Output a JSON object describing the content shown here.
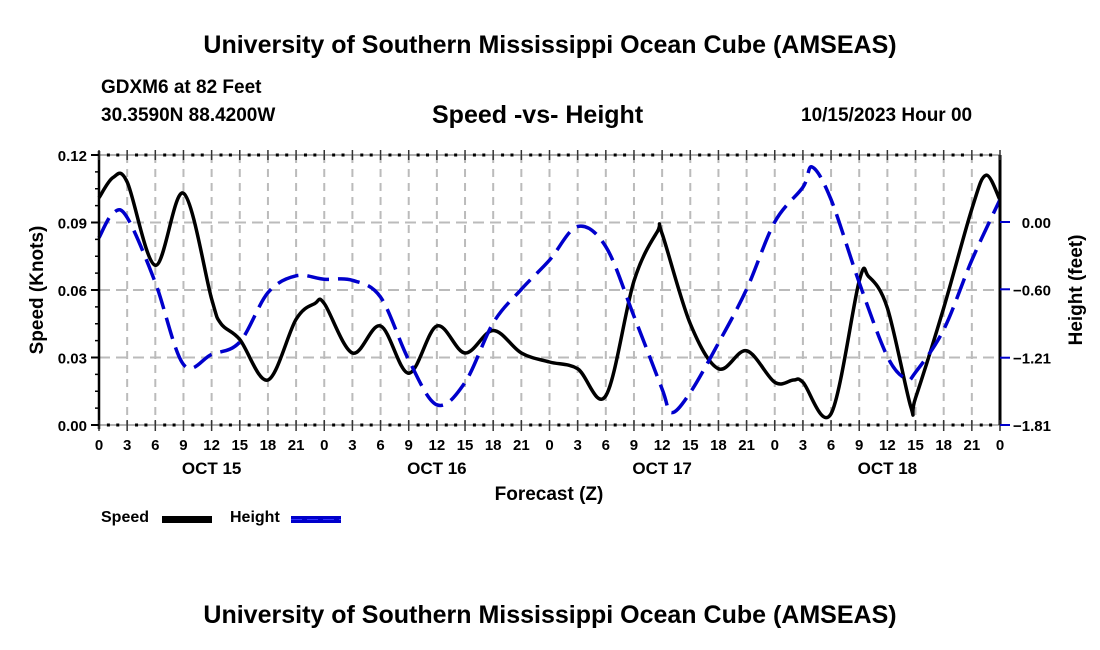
{
  "header": {
    "title": "University of Southern Mississippi Ocean Cube (AMSEAS)",
    "station": "GDXM6 at 82 Feet",
    "coordinates": "30.3590N  88.4200W",
    "subtitle": "Speed -vs- Height",
    "datetime": "10/15/2023 Hour 00"
  },
  "footer": {
    "title": "University of Southern Mississippi Ocean Cube (AMSEAS)"
  },
  "legend": {
    "items": [
      {
        "label": "Speed",
        "color": "#000000",
        "style": "solid"
      },
      {
        "label": "Height",
        "color": "#0000cc",
        "style": "dashed"
      }
    ]
  },
  "chart_data": {
    "type": "line",
    "title": "Speed -vs- Height",
    "xlabel": "Forecast (Z)",
    "ylabel": "Speed (Knots)",
    "y2label": "Height (feet)",
    "xlim": [
      0,
      96
    ],
    "ylim": [
      0,
      0.12
    ],
    "y2lim": [
      -1.81,
      0.6
    ],
    "grid": true,
    "legend_position": "bottom-left",
    "x_tick_hours": [
      0,
      3,
      6,
      9,
      12,
      15,
      18,
      21,
      24,
      27,
      30,
      33,
      36,
      39,
      42,
      45,
      48,
      51,
      54,
      57,
      60,
      63,
      66,
      69,
      72,
      75,
      78,
      81,
      84,
      87,
      90,
      93,
      96
    ],
    "x_tick_labels": [
      "0",
      "3",
      "6",
      "9",
      "12",
      "15",
      "18",
      "21",
      "0",
      "3",
      "6",
      "9",
      "12",
      "15",
      "18",
      "21",
      "0",
      "3",
      "6",
      "9",
      "12",
      "15",
      "18",
      "21",
      "0",
      "3",
      "6",
      "9",
      "12",
      "15",
      "18",
      "21",
      "0"
    ],
    "day_labels": [
      {
        "label": "OCT 15",
        "hour": 12
      },
      {
        "label": "OCT 16",
        "hour": 36
      },
      {
        "label": "OCT 17",
        "hour": 60
      },
      {
        "label": "OCT 18",
        "hour": 84
      }
    ],
    "y_ticks": [
      0.0,
      0.03,
      0.06,
      0.09,
      0.12
    ],
    "y_tick_labels": [
      "0.00",
      "0.03",
      "0.06",
      "0.09",
      "0.12"
    ],
    "y2_ticks": [
      0.0,
      -0.6,
      -1.21,
      -1.81
    ],
    "y2_tick_labels": [
      "0.00",
      "−0.60",
      "−1.21",
      "−1.81"
    ],
    "series": [
      {
        "name": "Speed",
        "axis": "left",
        "color": "#000000",
        "x": [
          0,
          1.5,
          3,
          6,
          9,
          12,
          13,
          15,
          18,
          21,
          23,
          24,
          27,
          30,
          33,
          36,
          39,
          42,
          45,
          48,
          51,
          54,
          57,
          59.5,
          60,
          63,
          66,
          69,
          72,
          74,
          75,
          78,
          81,
          82,
          84,
          86.5,
          87,
          90,
          93,
          94.5,
          96
        ],
        "values": [
          0.101,
          0.11,
          0.108,
          0.071,
          0.103,
          0.056,
          0.045,
          0.038,
          0.02,
          0.047,
          0.054,
          0.054,
          0.032,
          0.044,
          0.023,
          0.044,
          0.032,
          0.042,
          0.032,
          0.028,
          0.025,
          0.013,
          0.064,
          0.086,
          0.085,
          0.045,
          0.025,
          0.033,
          0.019,
          0.02,
          0.019,
          0.005,
          0.064,
          0.066,
          0.052,
          0.008,
          0.012,
          0.052,
          0.096,
          0.111,
          0.1
        ]
      },
      {
        "name": "Height",
        "axis": "right",
        "color": "#0000cc",
        "x": [
          0,
          1.5,
          3,
          6,
          9,
          12,
          15,
          18,
          21,
          24,
          27,
          30,
          33,
          36,
          39,
          42,
          45,
          48,
          51,
          54,
          57,
          60,
          61,
          63,
          66,
          69,
          72,
          75,
          76,
          78,
          81,
          84,
          86,
          87,
          90,
          93,
          96
        ],
        "values": [
          -0.14,
          0.08,
          0.04,
          -0.54,
          -1.27,
          -1.18,
          -1.07,
          -0.63,
          -0.48,
          -0.51,
          -0.52,
          -0.67,
          -1.23,
          -1.63,
          -1.43,
          -0.9,
          -0.6,
          -0.34,
          -0.04,
          -0.22,
          -0.84,
          -1.49,
          -1.7,
          -1.52,
          -1.08,
          -0.6,
          0.0,
          0.31,
          0.49,
          0.2,
          -0.54,
          -1.2,
          -1.4,
          -1.34,
          -0.96,
          -0.34,
          0.2
        ]
      }
    ]
  }
}
